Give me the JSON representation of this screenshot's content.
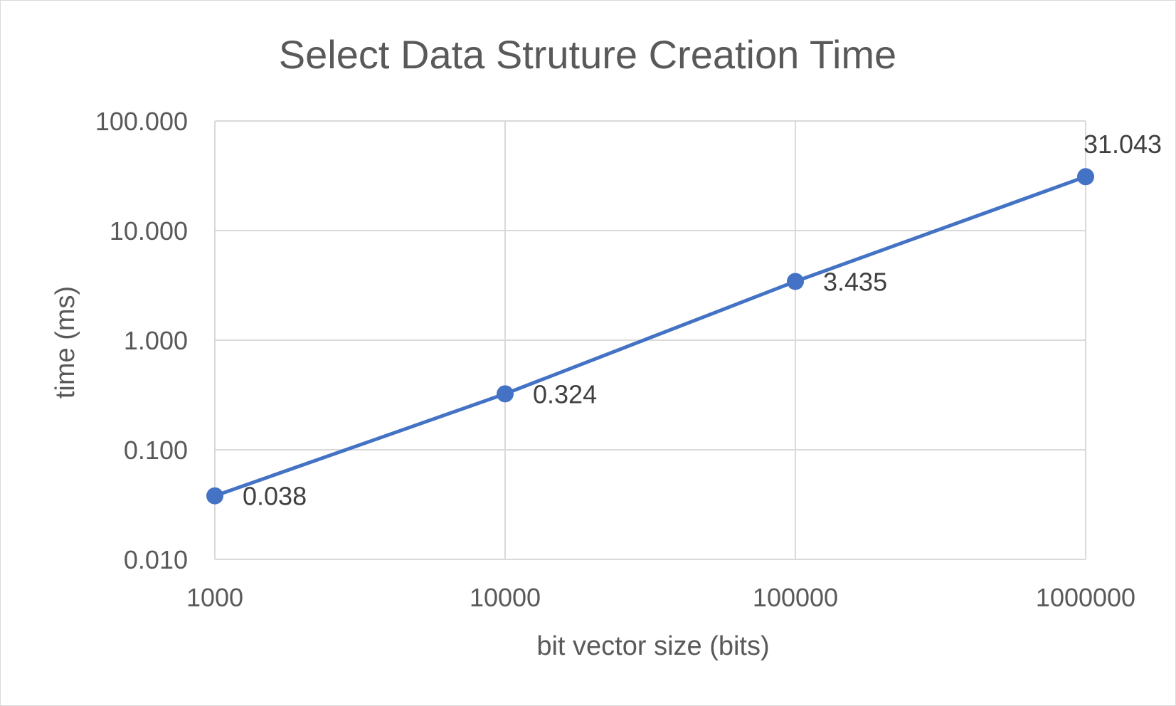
{
  "chart_data": {
    "type": "line",
    "title": "Select Data Struture Creation Time",
    "xlabel": "bit vector size (bits)",
    "ylabel": "time (ms)",
    "x_scale": "log",
    "y_scale": "log",
    "x": [
      1000,
      10000,
      100000,
      1000000
    ],
    "x_tick_labels": [
      "1000",
      "10000",
      "100000",
      "1000000"
    ],
    "y_tick_values": [
      0.01,
      0.1,
      1,
      10,
      100
    ],
    "y_tick_labels": [
      "0.010",
      "0.100",
      "1.000",
      "10.000",
      "100.000"
    ],
    "xlim": [
      1000,
      1000000
    ],
    "ylim": [
      0.01,
      100
    ],
    "grid": true,
    "series": [
      {
        "values": [
          0.038,
          0.324,
          3.435,
          31.043
        ],
        "data_labels": [
          "0.038",
          "0.324",
          "3.435",
          "31.043"
        ],
        "color": "#4472C4"
      }
    ]
  }
}
